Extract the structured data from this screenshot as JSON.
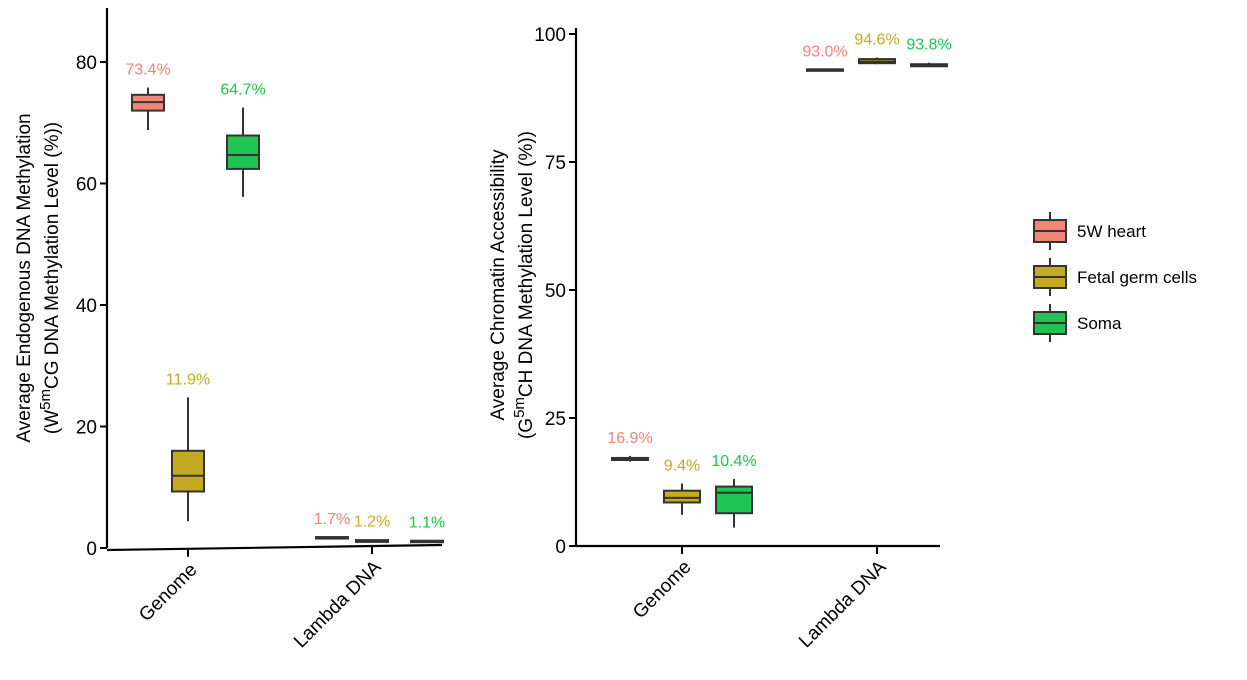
{
  "colors": {
    "5W heart": "#F08578",
    "Fetal germ cells": "#C3AA22",
    "Soma": "#20C452",
    "box_stroke": "#333333"
  },
  "legend": {
    "items": [
      {
        "label": "5W heart",
        "color": "#F08578"
      },
      {
        "label": "Fetal germ cells",
        "color": "#C3AA22"
      },
      {
        "label": "Soma",
        "color": "#20C452"
      }
    ],
    "placement": "right"
  },
  "chart_data": [
    {
      "type": "box",
      "title": "",
      "ylabel_lines": [
        "Average Endogenous DNA Methylation",
        "(W5mCG DNA Methylation Level (%))"
      ],
      "ylabel_parts": [
        [
          {
            "t": "Average Endogenous DNA Methylation"
          }
        ],
        [
          {
            "t": "(W"
          },
          {
            "t": "5m",
            "sup": true
          },
          {
            "t": "CG DNA Methylation Level (%))"
          }
        ]
      ],
      "categories": [
        "Genome",
        "Lambda DNA"
      ],
      "ylim": [
        0,
        88
      ],
      "yticks": [
        0,
        20,
        40,
        60,
        80
      ],
      "series": [
        {
          "name": "5W heart",
          "boxes": [
            {
              "min": 68.8,
              "q1": 72.0,
              "median": 73.4,
              "q3": 74.6,
              "max": 75.8,
              "label": "73.4%"
            },
            {
              "min": 1.6,
              "q1": 1.6,
              "median": 1.7,
              "q3": 1.8,
              "max": 1.8,
              "label": "1.7%"
            }
          ]
        },
        {
          "name": "Fetal germ cells",
          "boxes": [
            {
              "min": 4.4,
              "q1": 9.3,
              "median": 11.9,
              "q3": 16.0,
              "max": 24.8,
              "label": "11.9%"
            },
            {
              "min": 0.9,
              "q1": 1.0,
              "median": 1.2,
              "q3": 1.3,
              "max": 1.4,
              "label": "1.2%"
            }
          ]
        },
        {
          "name": "Soma",
          "boxes": [
            {
              "min": 57.8,
              "q1": 62.4,
              "median": 64.7,
              "q3": 67.9,
              "max": 72.5,
              "label": "64.7%"
            },
            {
              "min": 1.0,
              "q1": 1.0,
              "median": 1.1,
              "q3": 1.2,
              "max": 1.2,
              "label": "1.1%"
            }
          ]
        }
      ]
    },
    {
      "type": "box",
      "title": "",
      "ylabel_lines": [
        "Average Chromatin Accessibility",
        "(G5mCH DNA Methylation Level (%))"
      ],
      "ylabel_parts": [
        [
          {
            "t": "Average Chromatin Accessibility"
          }
        ],
        [
          {
            "t": "(G"
          },
          {
            "t": "5m",
            "sup": true
          },
          {
            "t": "CH DNA Methylation Level (%))"
          }
        ]
      ],
      "categories": [
        "Genome",
        "Lambda DNA"
      ],
      "ylim": [
        0,
        100
      ],
      "yticks": [
        0,
        25,
        50,
        75,
        100
      ],
      "series": [
        {
          "name": "5W heart",
          "boxes": [
            {
              "min": 16.5,
              "q1": 16.8,
              "median": 16.9,
              "q3": 17.2,
              "max": 17.6,
              "label": "16.9%"
            },
            {
              "min": 93.0,
              "q1": 93.0,
              "median": 93.0,
              "q3": 93.1,
              "max": 93.1,
              "label": "93.0%"
            }
          ]
        },
        {
          "name": "Fetal germ cells",
          "boxes": [
            {
              "min": 6.1,
              "q1": 8.5,
              "median": 9.4,
              "q3": 10.8,
              "max": 12.2,
              "label": "9.4%"
            },
            {
              "min": 94.1,
              "q1": 94.3,
              "median": 94.6,
              "q3": 95.1,
              "max": 95.4,
              "label": "94.6%"
            }
          ]
        },
        {
          "name": "Soma",
          "boxes": [
            {
              "min": 3.6,
              "q1": 6.4,
              "median": 10.4,
              "q3": 11.6,
              "max": 13.1,
              "label": "10.4%"
            },
            {
              "min": 93.6,
              "q1": 93.7,
              "median": 93.8,
              "q3": 94.1,
              "max": 94.4,
              "label": "93.8%"
            }
          ]
        }
      ]
    }
  ]
}
